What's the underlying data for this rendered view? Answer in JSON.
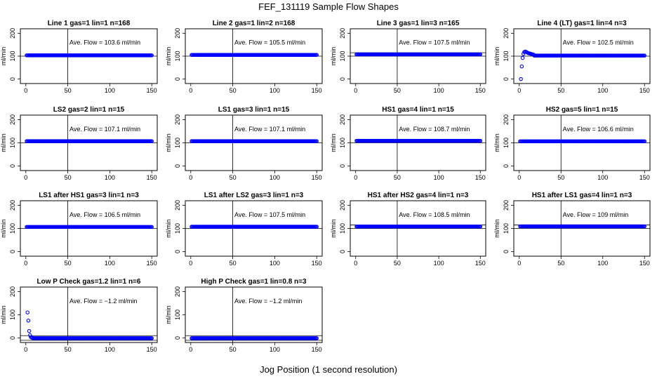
{
  "figure": {
    "title": "FEF_131119  Sample Flow Shapes",
    "xlabel": "Jog Position (1 second resolution)"
  },
  "chart_data": [
    {
      "type": "scatter",
      "title": "Line 1 gas=1 lin=1 n=168",
      "ylabel": "ml/min",
      "xlim": [
        0,
        150
      ],
      "ylim": [
        -10,
        210
      ],
      "xticks": [
        0,
        50,
        100,
        150
      ],
      "yticks": [
        0,
        100,
        200
      ],
      "xticklabels": [
        "0",
        "50",
        "100",
        "150"
      ],
      "yticklabels": [
        "0",
        "100",
        "200"
      ],
      "vline": 50,
      "hlines": [
        100
      ],
      "annotation": "Ave. Flow =  103.6  ml/min",
      "series": [
        {
          "color": "#0000ff",
          "x_range": [
            1,
            150
          ],
          "y": 103.6,
          "early": []
        }
      ]
    },
    {
      "type": "scatter",
      "title": "Line 2 gas=1 lin=2 n=168",
      "ylabel": "ml/min",
      "xlim": [
        0,
        150
      ],
      "ylim": [
        -10,
        210
      ],
      "xticks": [
        0,
        50,
        100,
        150
      ],
      "yticks": [
        0,
        100,
        200
      ],
      "xticklabels": [
        "0",
        "50",
        "100",
        "150"
      ],
      "yticklabels": [
        "0",
        "100",
        "200"
      ],
      "vline": 50,
      "hlines": [
        100
      ],
      "annotation": "Ave. Flow =  105.5  ml/min",
      "series": [
        {
          "color": "#0000ff",
          "x_range": [
            1,
            150
          ],
          "y": 105.5,
          "early": []
        }
      ]
    },
    {
      "type": "scatter",
      "title": "Line 3 gas=1 lin=3 n=165",
      "ylabel": "ml/min",
      "xlim": [
        0,
        150
      ],
      "ylim": [
        -10,
        210
      ],
      "xticks": [
        0,
        50,
        100,
        150
      ],
      "yticks": [
        0,
        100,
        200
      ],
      "xticklabels": [
        "0",
        "50",
        "100",
        "150"
      ],
      "yticklabels": [
        "0",
        "100",
        "200"
      ],
      "vline": 50,
      "hlines": [
        100,
        115
      ],
      "annotation": "Ave. Flow =  107.5  ml/min",
      "series": [
        {
          "color": "#0000ff",
          "x_range": [
            1,
            150
          ],
          "y": 107.5,
          "early": []
        }
      ]
    },
    {
      "type": "scatter",
      "title": "Line 4 (LT) gas=1 lin=4 n=3",
      "ylabel": "ml/min",
      "xlim": [
        0,
        150
      ],
      "ylim": [
        -10,
        210
      ],
      "xticks": [
        0,
        50,
        100,
        150
      ],
      "yticks": [
        0,
        100,
        200
      ],
      "xticklabels": [
        "0",
        "50",
        "100",
        "150"
      ],
      "yticklabels": [
        "0",
        "100",
        "200"
      ],
      "vline": 50,
      "hlines": [
        100
      ],
      "annotation": "Ave. Flow =  102.5  ml/min",
      "series": [
        {
          "color": "#0000ff",
          "x_range": [
            18,
            150
          ],
          "y": 102.5,
          "early": [
            [
              2,
              0
            ],
            [
              3,
              55
            ],
            [
              4,
              92
            ],
            [
              5,
              110
            ],
            [
              6,
              118
            ],
            [
              7,
              120
            ],
            [
              8,
              119
            ],
            [
              9,
              117
            ],
            [
              10,
              115
            ],
            [
              11,
              113
            ],
            [
              12,
              112
            ],
            [
              13,
              111
            ],
            [
              14,
              110
            ],
            [
              15,
              109
            ],
            [
              16,
              108
            ],
            [
              17,
              107
            ]
          ]
        }
      ]
    },
    {
      "type": "scatter",
      "title": "LS2 gas=2 lin=1 n=15",
      "ylabel": "ml/min",
      "xlim": [
        0,
        150
      ],
      "ylim": [
        -10,
        210
      ],
      "xticks": [
        0,
        50,
        100,
        150
      ],
      "yticks": [
        0,
        100,
        200
      ],
      "xticklabels": [
        "0",
        "50",
        "100",
        "150"
      ],
      "yticklabels": [
        "0",
        "100",
        "200"
      ],
      "vline": 50,
      "hlines": [
        100
      ],
      "annotation": "Ave. Flow =  107.1  ml/min",
      "series": [
        {
          "color": "#0000ff",
          "x_range": [
            1,
            150
          ],
          "y": 107.1,
          "early": []
        }
      ]
    },
    {
      "type": "scatter",
      "title": "LS1 gas=3 lin=1 n=15",
      "ylabel": "ml/min",
      "xlim": [
        0,
        150
      ],
      "ylim": [
        -10,
        210
      ],
      "xticks": [
        0,
        50,
        100,
        150
      ],
      "yticks": [
        0,
        100,
        200
      ],
      "xticklabels": [
        "0",
        "50",
        "100",
        "150"
      ],
      "yticklabels": [
        "0",
        "100",
        "200"
      ],
      "vline": 50,
      "hlines": [
        100
      ],
      "annotation": "Ave. Flow =  107.1  ml/min",
      "series": [
        {
          "color": "#0000ff",
          "x_range": [
            1,
            150
          ],
          "y": 107.1,
          "early": []
        }
      ]
    },
    {
      "type": "scatter",
      "title": "HS1 gas=4 lin=1 n=15",
      "ylabel": "ml/min",
      "xlim": [
        0,
        150
      ],
      "ylim": [
        -10,
        210
      ],
      "xticks": [
        0,
        50,
        100,
        150
      ],
      "yticks": [
        0,
        100,
        200
      ],
      "xticklabels": [
        "0",
        "50",
        "100",
        "150"
      ],
      "yticklabels": [
        "0",
        "100",
        "200"
      ],
      "vline": 50,
      "hlines": [
        100
      ],
      "annotation": "Ave. Flow =  108.7  ml/min",
      "series": [
        {
          "color": "#0000ff",
          "x_range": [
            1,
            150
          ],
          "y": 108.7,
          "early": []
        }
      ]
    },
    {
      "type": "scatter",
      "title": "HS2 gas=5 lin=1 n=15",
      "ylabel": "ml/min",
      "xlim": [
        0,
        150
      ],
      "ylim": [
        -10,
        210
      ],
      "xticks": [
        0,
        50,
        100,
        150
      ],
      "yticks": [
        0,
        100,
        200
      ],
      "xticklabels": [
        "0",
        "50",
        "100",
        "150"
      ],
      "yticklabels": [
        "0",
        "100",
        "200"
      ],
      "vline": 50,
      "hlines": [
        100
      ],
      "annotation": "Ave. Flow =  106.6  ml/min",
      "series": [
        {
          "color": "#0000ff",
          "x_range": [
            1,
            150
          ],
          "y": 106.6,
          "early": []
        }
      ]
    },
    {
      "type": "scatter",
      "title": "LS1 after HS1 gas=3 lin=1 n=3",
      "ylabel": "ml/min",
      "xlim": [
        0,
        150
      ],
      "ylim": [
        -10,
        210
      ],
      "xticks": [
        0,
        50,
        100,
        150
      ],
      "yticks": [
        0,
        100,
        200
      ],
      "xticklabels": [
        "0",
        "50",
        "100",
        "150"
      ],
      "yticklabels": [
        "0",
        "100",
        "200"
      ],
      "vline": 50,
      "hlines": [
        100
      ],
      "annotation": "Ave. Flow =  106.5  ml/min",
      "series": [
        {
          "color": "#0000ff",
          "x_range": [
            1,
            150
          ],
          "y": 106.5,
          "early": []
        }
      ]
    },
    {
      "type": "scatter",
      "title": "LS1 after LS2 gas=3 lin=1 n=3",
      "ylabel": "ml/min",
      "xlim": [
        0,
        150
      ],
      "ylim": [
        -10,
        210
      ],
      "xticks": [
        0,
        50,
        100,
        150
      ],
      "yticks": [
        0,
        100,
        200
      ],
      "xticklabels": [
        "0",
        "50",
        "100",
        "150"
      ],
      "yticklabels": [
        "0",
        "100",
        "200"
      ],
      "vline": 50,
      "hlines": [
        100
      ],
      "annotation": "Ave. Flow =  107.5  ml/min",
      "series": [
        {
          "color": "#0000ff",
          "x_range": [
            1,
            150
          ],
          "y": 107.5,
          "early": []
        }
      ]
    },
    {
      "type": "scatter",
      "title": "HS1 after HS2 gas=4 lin=1 n=3",
      "ylabel": "ml/min",
      "xlim": [
        0,
        150
      ],
      "ylim": [
        -10,
        210
      ],
      "xticks": [
        0,
        50,
        100,
        150
      ],
      "yticks": [
        0,
        100,
        200
      ],
      "xticklabels": [
        "0",
        "50",
        "100",
        "150"
      ],
      "yticklabels": [
        "0",
        "100",
        "200"
      ],
      "vline": 50,
      "hlines": [
        100,
        115
      ],
      "annotation": "Ave. Flow =  108.5  ml/min",
      "series": [
        {
          "color": "#0000ff",
          "x_range": [
            1,
            150
          ],
          "y": 108.5,
          "early": []
        }
      ]
    },
    {
      "type": "scatter",
      "title": "HS1 after LS1 gas=4 lin=1 n=3",
      "ylabel": "ml/min",
      "xlim": [
        0,
        150
      ],
      "ylim": [
        -10,
        210
      ],
      "xticks": [
        0,
        50,
        100,
        150
      ],
      "yticks": [
        0,
        100,
        200
      ],
      "xticklabels": [
        "0",
        "50",
        "100",
        "150"
      ],
      "yticklabels": [
        "0",
        "100",
        "200"
      ],
      "vline": 50,
      "hlines": [
        100,
        115
      ],
      "annotation": "Ave. Flow =  109  ml/min",
      "series": [
        {
          "color": "#0000ff",
          "x_range": [
            1,
            150
          ],
          "y": 109,
          "early": []
        }
      ]
    },
    {
      "type": "scatter",
      "title": "Low P Check gas=1.2 lin=1 n=6",
      "ylabel": "ml/min",
      "xlim": [
        0,
        150
      ],
      "ylim": [
        -10,
        210
      ],
      "xticks": [
        0,
        50,
        100,
        150
      ],
      "yticks": [
        0,
        100,
        200
      ],
      "xticklabels": [
        "0",
        "50",
        "100",
        "150"
      ],
      "yticklabels": [
        "0",
        "100",
        "200"
      ],
      "vline": 50,
      "hlines": [
        -10,
        10
      ],
      "annotation": "Ave. Flow =  −1.2  ml/min",
      "series": [
        {
          "color": "#0000ff",
          "x_range": [
            9,
            150
          ],
          "y": -1.2,
          "early": [
            [
              2,
              110
            ],
            [
              3,
              75
            ],
            [
              4,
              30
            ],
            [
              5,
              12
            ],
            [
              6,
              4
            ],
            [
              7,
              1
            ],
            [
              8,
              0
            ]
          ]
        }
      ]
    },
    {
      "type": "scatter",
      "title": "High P Check gas=1 lin=0.8 n=3",
      "ylabel": "ml/min",
      "xlim": [
        0,
        150
      ],
      "ylim": [
        -10,
        210
      ],
      "xticks": [
        0,
        50,
        100,
        150
      ],
      "yticks": [
        0,
        100,
        200
      ],
      "xticklabels": [
        "0",
        "50",
        "100",
        "150"
      ],
      "yticklabels": [
        "0",
        "100",
        "200"
      ],
      "vline": 50,
      "hlines": [
        -10,
        10
      ],
      "annotation": "Ave. Flow =  −1.2  ml/min",
      "series": [
        {
          "color": "#0000ff",
          "x_range": [
            1,
            150
          ],
          "y": -1.2,
          "early": []
        }
      ]
    }
  ]
}
